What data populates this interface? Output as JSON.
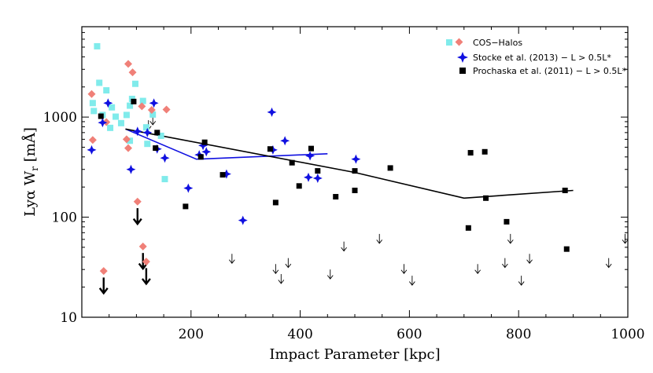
{
  "chart_data": {
    "type": "scatter",
    "title": "",
    "xlabel": "Impact Parameter [kpc]",
    "ylabel": "Lyα W",
    "ylabel_sub": "r",
    "ylabel_unit": " [mÅ]",
    "xlim": [
      0,
      1000
    ],
    "ylim": [
      10,
      8000
    ],
    "yscale": "log",
    "x_ticks": [
      200,
      400,
      600,
      800,
      1000
    ],
    "y_ticks": [
      10,
      100,
      1000
    ],
    "colors": {
      "cos_square": "#80EBEB",
      "cos_diamond": "#F08078",
      "stocke": "#1010E0",
      "prochaska": "#000000"
    },
    "series": [
      {
        "name": "COS-Halos",
        "marker": "square+diamond",
        "squares": [
          [
            28,
            5100
          ],
          [
            32,
            2200
          ],
          [
            20,
            1380
          ],
          [
            22,
            1150
          ],
          [
            38,
            1050
          ],
          [
            45,
            1850
          ],
          [
            55,
            1250
          ],
          [
            62,
            1010
          ],
          [
            52,
            780
          ],
          [
            72,
            870
          ],
          [
            82,
            1050
          ],
          [
            88,
            1300
          ],
          [
            92,
            1520
          ],
          [
            98,
            2150
          ],
          [
            112,
            1450
          ],
          [
            118,
            790
          ],
          [
            120,
            540
          ],
          [
            130,
            1060
          ],
          [
            145,
            650
          ],
          [
            152,
            240
          ],
          [
            88,
            580
          ]
        ],
        "diamonds": [
          [
            18,
            1700
          ],
          [
            20,
            590
          ],
          [
            85,
            3400
          ],
          [
            93,
            2800
          ],
          [
            110,
            1280
          ],
          [
            128,
            1180
          ],
          [
            155,
            1190
          ],
          [
            82,
            600
          ],
          [
            85,
            490
          ],
          [
            102,
            143
          ],
          [
            112,
            51
          ],
          [
            118,
            36
          ],
          [
            40,
            29
          ],
          [
            45,
            890
          ]
        ]
      },
      {
        "name": "Stocke et al. (2013) − L > 0.5L*",
        "marker": "star",
        "points": [
          [
            18,
            470
          ],
          [
            38,
            880
          ],
          [
            48,
            1380
          ],
          [
            90,
            300
          ],
          [
            102,
            720
          ],
          [
            120,
            700
          ],
          [
            132,
            1380
          ],
          [
            138,
            480
          ],
          [
            152,
            390
          ],
          [
            195,
            195
          ],
          [
            215,
            420
          ],
          [
            222,
            520
          ],
          [
            228,
            450
          ],
          [
            265,
            270
          ],
          [
            295,
            93
          ],
          [
            348,
            1120
          ],
          [
            350,
            470
          ],
          [
            372,
            580
          ],
          [
            415,
            250
          ],
          [
            418,
            410
          ],
          [
            432,
            245
          ],
          [
            502,
            380
          ]
        ],
        "line": [
          [
            80,
            760
          ],
          [
            210,
            380
          ],
          [
            450,
            430
          ]
        ]
      },
      {
        "name": "Prochaska et al. (2011) − L > 0.5L*",
        "marker": "square",
        "points": [
          [
            35,
            1020
          ],
          [
            95,
            1430
          ],
          [
            138,
            700
          ],
          [
            135,
            490
          ],
          [
            190,
            128
          ],
          [
            218,
            400
          ],
          [
            225,
            560
          ],
          [
            258,
            265
          ],
          [
            345,
            480
          ],
          [
            355,
            140
          ],
          [
            385,
            350
          ],
          [
            398,
            205
          ],
          [
            420,
            485
          ],
          [
            432,
            290
          ],
          [
            465,
            160
          ],
          [
            500,
            290
          ],
          [
            500,
            185
          ],
          [
            565,
            310
          ],
          [
            708,
            78
          ],
          [
            712,
            440
          ],
          [
            738,
            450
          ],
          [
            740,
            155
          ],
          [
            778,
            90
          ],
          [
            885,
            185
          ],
          [
            888,
            48
          ]
        ],
        "line": [
          [
            80,
            760
          ],
          [
            500,
            280
          ],
          [
            700,
            155
          ],
          [
            900,
            185
          ]
        ]
      }
    ],
    "upper_limits_thin": [
      [
        122,
        930
      ],
      [
        130,
        1040
      ],
      [
        275,
        43
      ],
      [
        355,
        34
      ],
      [
        365,
        27
      ],
      [
        378,
        39
      ],
      [
        455,
        30
      ],
      [
        480,
        57
      ],
      [
        545,
        68
      ],
      [
        590,
        34
      ],
      [
        605,
        26
      ],
      [
        725,
        34
      ],
      [
        775,
        39
      ],
      [
        785,
        68
      ],
      [
        805,
        26
      ],
      [
        820,
        43
      ],
      [
        965,
        39
      ],
      [
        995,
        68
      ]
    ],
    "upper_limits_bold": [
      [
        40,
        29
      ],
      [
        102,
        143
      ],
      [
        112,
        51
      ],
      [
        118,
        36
      ]
    ],
    "legend": {
      "position": "top-right",
      "entries": [
        "COS−Halos",
        "Stocke et al. (2013) − L > 0.5L*",
        "Prochaska et al. (2011) − L > 0.5L*"
      ]
    }
  }
}
